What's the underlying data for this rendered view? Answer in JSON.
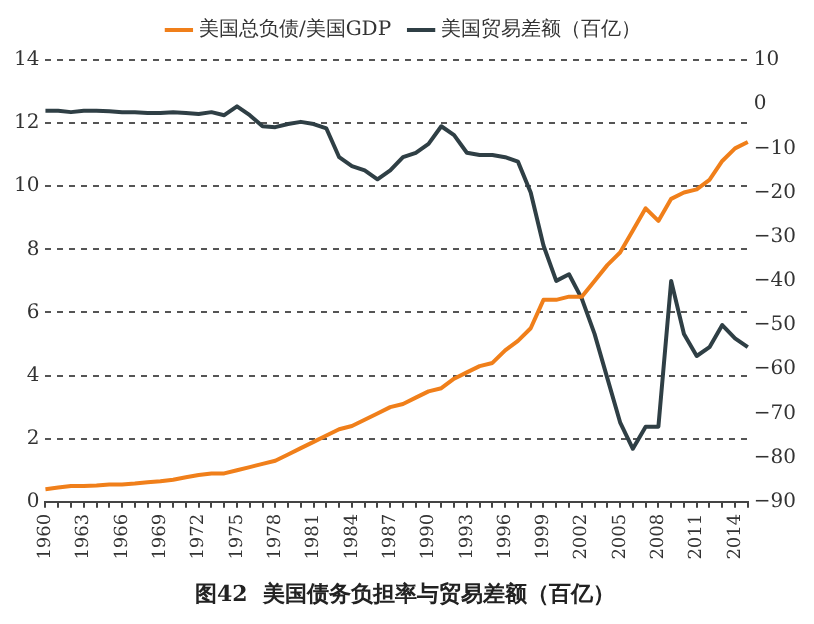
{
  "chart_data": {
    "type": "line",
    "title": "图42  美国债务负担率与贸易差额（百亿）",
    "categories": [
      "1960",
      null,
      null,
      "1963",
      null,
      null,
      "1966",
      null,
      null,
      "1969",
      null,
      null,
      "1972",
      null,
      null,
      "1975",
      null,
      null,
      "1978",
      null,
      null,
      "1981",
      null,
      null,
      "1984",
      null,
      null,
      "1987",
      null,
      null,
      "1990",
      null,
      null,
      "1993",
      null,
      null,
      "1996",
      null,
      null,
      "1999",
      null,
      null,
      "2002",
      null,
      null,
      "2005",
      null,
      null,
      "2008",
      null,
      null,
      "2011",
      null,
      null,
      "2014",
      null
    ],
    "series": [
      {
        "name": "美国总负债/美国GDP",
        "color": "#f07f1a",
        "values": [
          0.4,
          0.45,
          0.5,
          0.5,
          0.52,
          0.55,
          0.55,
          0.58,
          0.62,
          0.65,
          0.7,
          0.78,
          0.85,
          0.9,
          0.9,
          1.0,
          1.1,
          1.2,
          1.3,
          1.5,
          1.7,
          1.9,
          2.1,
          2.3,
          2.4,
          2.6,
          2.8,
          3.0,
          3.1,
          3.3,
          3.5,
          3.6,
          3.9,
          4.1,
          4.3,
          4.4,
          4.8,
          5.1,
          5.5,
          6.4,
          6.4,
          6.5,
          6.5,
          7.0,
          7.5,
          7.9,
          8.6,
          9.3,
          8.9,
          9.6,
          9.8,
          9.9,
          10.2,
          10.8,
          11.2,
          11.4
        ]
      },
      {
        "name": "美国贸易差额（百亿）",
        "color": "#2f3f45",
        "axis": "y2",
        "values": [
          -1.5,
          -1.5,
          -1.8,
          -1.5,
          -1.5,
          -1.6,
          -1.8,
          -1.8,
          -2,
          -2,
          -1.8,
          -2,
          -2.2,
          -1.8,
          -2.5,
          -0.5,
          -2.5,
          -5,
          -5.2,
          -4.5,
          -4,
          -4.5,
          -5.5,
          -12,
          -14,
          -15,
          -17,
          -15,
          -12,
          -11,
          -9,
          -5,
          -7,
          -11,
          -11.5,
          -11.5,
          -12,
          -13,
          -20,
          -32,
          -40,
          -38.5,
          -44,
          -52,
          -62,
          -72,
          -78,
          -73,
          -73,
          -40,
          -52,
          -57,
          -55,
          -50,
          -53,
          -55
        ]
      }
    ],
    "ylim": [
      0,
      14
    ],
    "yticks": [
      0,
      2,
      4,
      6,
      8,
      10,
      12,
      14
    ],
    "y2lim": [
      -90,
      10
    ],
    "y2ticks": [
      -90,
      -80,
      -70,
      -60,
      -50,
      -40,
      -30,
      -20,
      -10,
      0,
      10
    ],
    "grid": "y",
    "legend": "top",
    "marker": "none",
    "line_style": "solid"
  }
}
